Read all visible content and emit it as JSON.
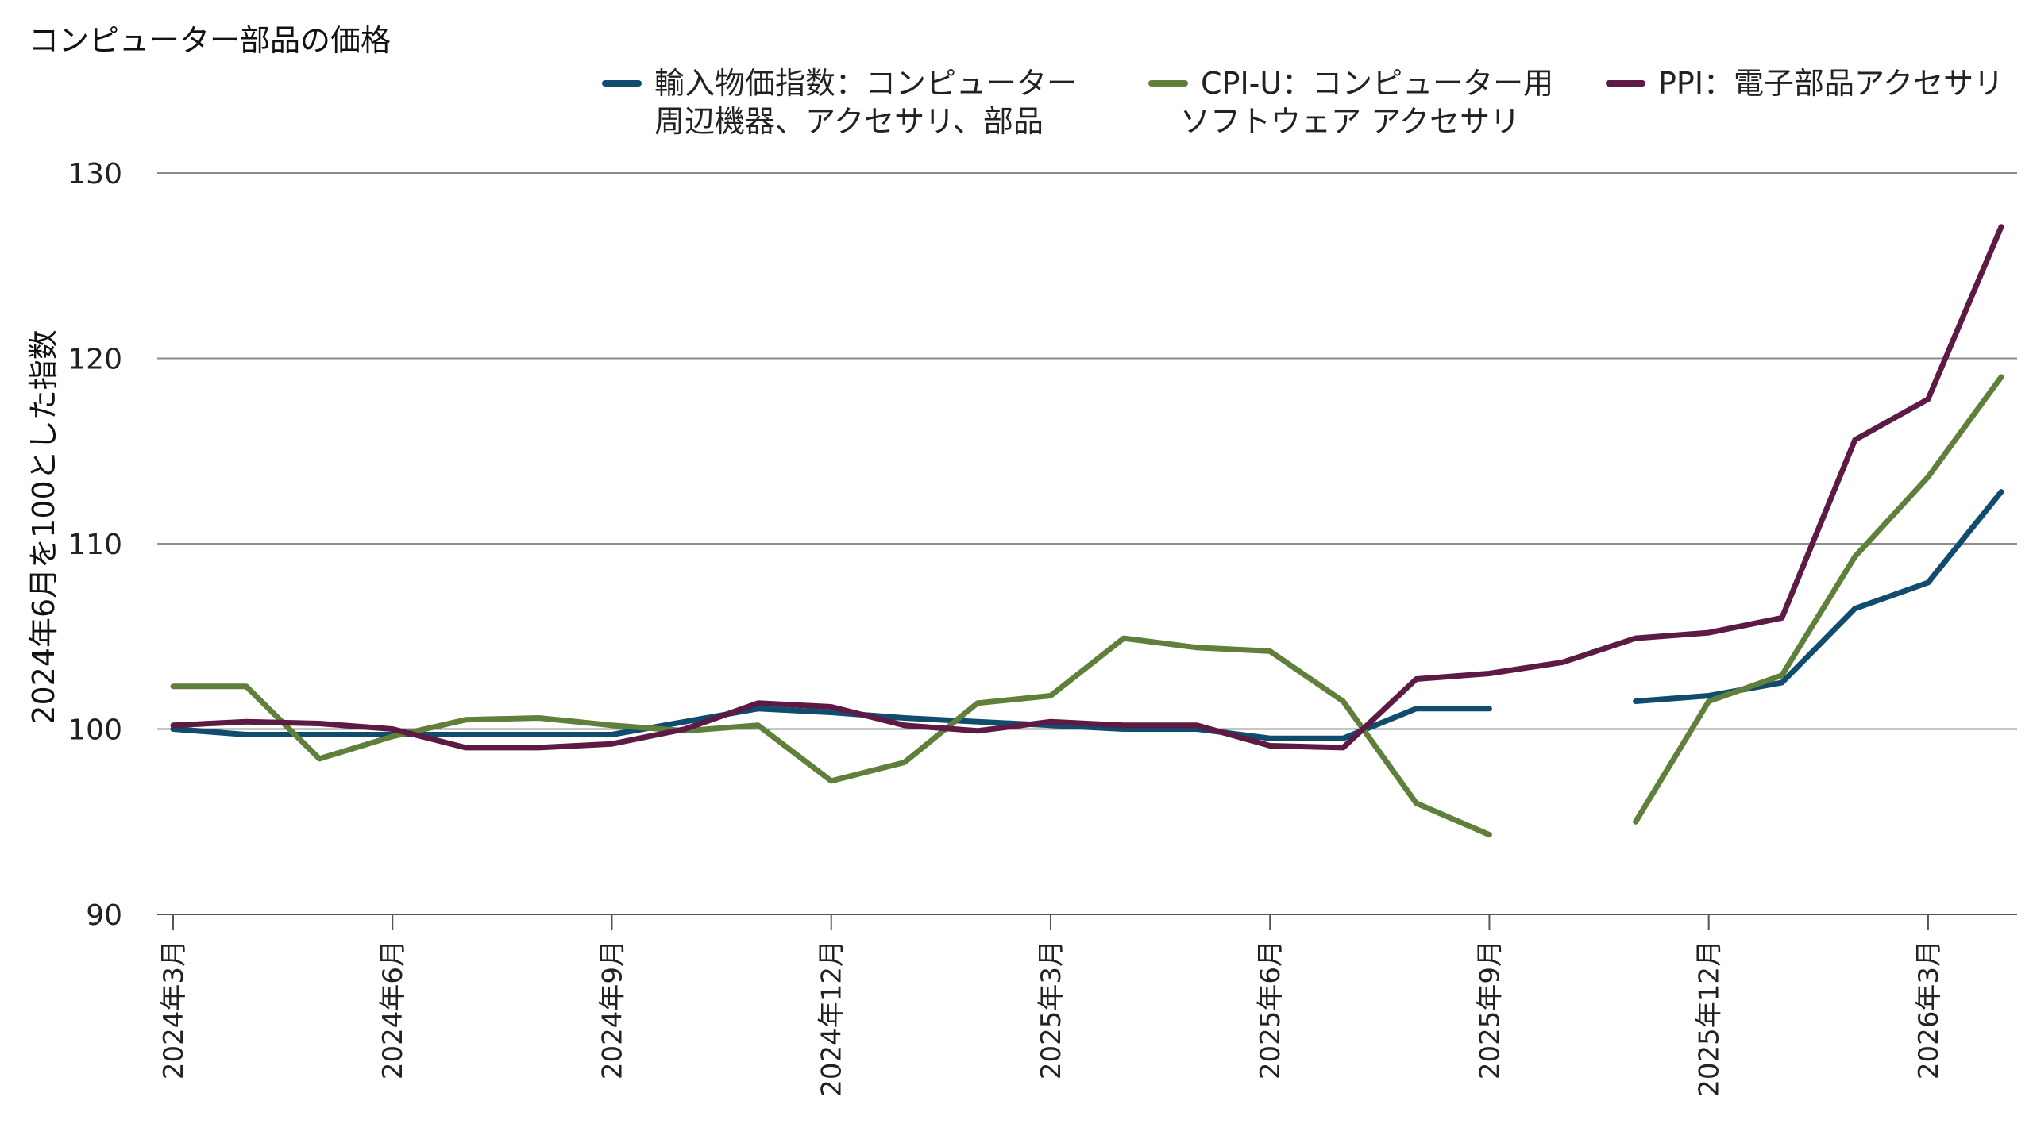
{
  "chart_data": {
    "type": "line",
    "title": "コンピューター部品の価格",
    "ylabel": "2024年6月を100とした指数",
    "xlabel": "",
    "ylim": [
      90,
      130
    ],
    "yticks": [
      90,
      100,
      110,
      120,
      130
    ],
    "grid": "horizontal",
    "legend_position": "top",
    "x": [
      "2024-03",
      "2024-04",
      "2024-05",
      "2024-06",
      "2024-07",
      "2024-08",
      "2024-09",
      "2024-10",
      "2024-11",
      "2024-12",
      "2025-01",
      "2025-02",
      "2025-03",
      "2025-04",
      "2025-05",
      "2025-06",
      "2025-07",
      "2025-08",
      "2025-09",
      "2025-10",
      "2025-11",
      "2025-12",
      "2026-01",
      "2026-02",
      "2026-03",
      "2026-04"
    ],
    "xticks": [
      {
        "x": "2024-03",
        "label": "2024年3月"
      },
      {
        "x": "2024-06",
        "label": "2024年6月"
      },
      {
        "x": "2024-09",
        "label": "2024年9月"
      },
      {
        "x": "2024-12",
        "label": "2024年12月"
      },
      {
        "x": "2025-03",
        "label": "2025年3月"
      },
      {
        "x": "2025-06",
        "label": "2025年6月"
      },
      {
        "x": "2025-09",
        "label": "2025年9月"
      },
      {
        "x": "2025-12",
        "label": "2025年12月"
      },
      {
        "x": "2026-03",
        "label": "2026年3月"
      }
    ],
    "series": [
      {
        "name": "輸入物価指数：コンピューター周辺機器、アクセサリ、部品",
        "legend_lines": [
          "輸入物価指数：コンピューター",
          "周辺機器、アクセサリ、部品"
        ],
        "color": "#0f4c6e",
        "values": [
          100.0,
          99.7,
          99.7,
          99.7,
          99.7,
          99.7,
          99.7,
          100.4,
          101.1,
          100.9,
          100.6,
          100.4,
          100.2,
          100.0,
          100.0,
          99.5,
          99.5,
          101.1,
          101.1,
          null,
          101.5,
          101.8,
          102.5,
          106.5,
          107.9,
          112.8
        ]
      },
      {
        "name": "CPI-U：コンピューター用ソフトウェア アクセサリ",
        "legend_lines": [
          "CPI-U：コンピューター用",
          "ソフトウェア アクセサリ"
        ],
        "color": "#5f7f3a",
        "values": [
          102.3,
          102.3,
          98.4,
          99.6,
          100.5,
          100.6,
          100.2,
          99.9,
          100.2,
          97.2,
          98.2,
          101.4,
          101.8,
          104.9,
          104.4,
          104.2,
          101.5,
          96.0,
          94.3,
          null,
          95.0,
          101.5,
          102.9,
          109.3,
          113.6,
          119.0
        ]
      },
      {
        "name": "PPI：電子部品アクセサリ",
        "legend_lines": [
          "PPI：電子部品アクセサリ"
        ],
        "color": "#5c1a45",
        "values": [
          100.2,
          100.4,
          100.3,
          100.0,
          99.0,
          99.0,
          99.2,
          100.0,
          101.4,
          101.2,
          100.2,
          99.9,
          100.4,
          100.2,
          100.2,
          99.1,
          99.0,
          102.7,
          103.0,
          103.6,
          104.9,
          105.2,
          106.0,
          115.6,
          117.8,
          127.1
        ]
      }
    ]
  }
}
